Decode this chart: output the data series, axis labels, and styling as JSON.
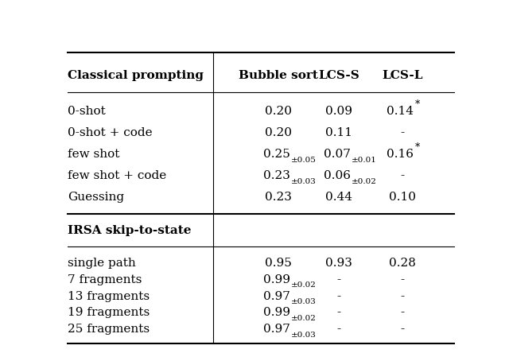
{
  "fig_width": 6.4,
  "fig_height": 4.49,
  "bg_color": "#ffffff",
  "header_row": [
    "Classical prompting",
    "Bubble sort",
    "LCS-S",
    "LCS-L"
  ],
  "section1_rows": [
    [
      "0-shot",
      "0.20",
      "0.09",
      "0.14*"
    ],
    [
      "0-shot + code",
      "0.20",
      "0.11",
      "-"
    ],
    [
      "few shot",
      "0.25±0.05",
      "0.07±0.01",
      "0.16*"
    ],
    [
      "few shot + code",
      "0.23±0.03",
      "0.06±0.02",
      "-"
    ],
    [
      "Guessing",
      "0.23",
      "0.44",
      "0.10"
    ]
  ],
  "section2_header": "IRSA skip-to-state",
  "section2_rows": [
    [
      "single path",
      "0.95",
      "0.93",
      "0.28"
    ],
    [
      "7 fragments",
      "0.99±0.02",
      "-",
      "-"
    ],
    [
      "13 fragments",
      "0.97±0.03",
      "-",
      "-"
    ],
    [
      "19 fragments",
      "0.99±0.02",
      "-",
      "-"
    ],
    [
      "25 fragments",
      "0.97±0.03",
      "-",
      "-"
    ]
  ]
}
